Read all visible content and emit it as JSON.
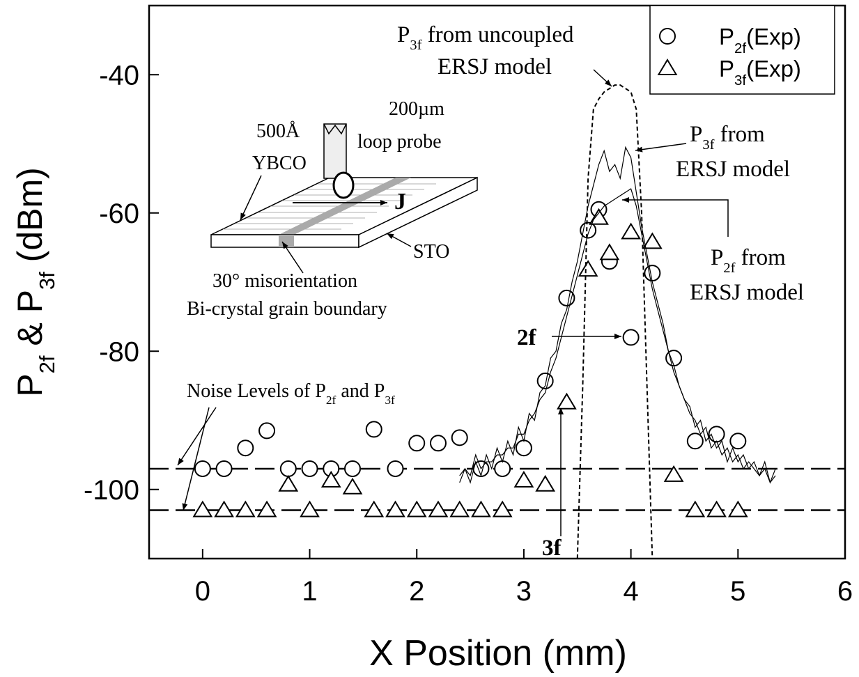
{
  "chart_data": {
    "type": "scatter",
    "x_label": "X Position (mm)",
    "y_label": [
      "P",
      "2f",
      " & P",
      "3f",
      " (dBm)"
    ],
    "xlim": [
      -0.5,
      6
    ],
    "ylim": [
      -110,
      -30
    ],
    "xticks": [
      0,
      1,
      2,
      3,
      4,
      5,
      6
    ],
    "yticks": [
      -40,
      -60,
      -80,
      -100
    ],
    "reference_lines": [
      -97,
      -103
    ],
    "series": [
      {
        "name": [
          "P",
          "2f",
          "(Exp)"
        ],
        "marker": "circle",
        "color": "#000000",
        "x": [
          0,
          0.2,
          0.4,
          0.6,
          0.8,
          1.0,
          1.2,
          1.4,
          1.6,
          1.8,
          2.0,
          2.2,
          2.4,
          2.6,
          2.8,
          3.0,
          3.2,
          3.4,
          3.6,
          3.7,
          3.8,
          4.0,
          4.2,
          4.4,
          4.6,
          4.8,
          5.0
        ],
        "values": [
          -97,
          -97,
          -94,
          -91.5,
          -97,
          -97,
          -97,
          -97,
          -91.3,
          -97,
          -93.3,
          -93.3,
          -92.5,
          -97,
          -97,
          -94,
          -84.3,
          -72.3,
          -62.5,
          -59.5,
          -67,
          -78,
          -68.7,
          -81,
          -93,
          -92,
          -93
        ]
      },
      {
        "name": [
          "P",
          "3f",
          "(Exp)"
        ],
        "marker": "triangle",
        "color": "#000000",
        "x": [
          0,
          0.2,
          0.4,
          0.6,
          0.8,
          1.0,
          1.2,
          1.4,
          1.6,
          1.8,
          2.0,
          2.2,
          2.4,
          2.6,
          2.8,
          3.0,
          3.2,
          3.4,
          3.6,
          3.7,
          3.8,
          4.0,
          4.2,
          4.4,
          4.6,
          4.8,
          5.0
        ],
        "values": [
          -103,
          -103,
          -103,
          -103,
          -99.3,
          -103,
          -98.7,
          -99.7,
          -103,
          -103,
          -103,
          -103,
          -103,
          -103,
          -103,
          -98.7,
          -99.3,
          -87.4,
          -68.2,
          -60.7,
          -65.8,
          -62.8,
          -64.2,
          -97.9,
          -103,
          -103,
          -103
        ]
      },
      {
        "marker": "line",
        "color": "#000000",
        "x": [
          2.4,
          2.45,
          2.5,
          2.55,
          2.6,
          2.65,
          2.7,
          2.75,
          2.8,
          2.85,
          2.9,
          2.95,
          3.0,
          3.05,
          3.1,
          3.15,
          3.2,
          3.25,
          3.3,
          3.35,
          3.4,
          3.45,
          3.5,
          3.55,
          3.6,
          3.65,
          3.7,
          3.75,
          3.8,
          3.85,
          3.9,
          3.95,
          4.0,
          4.05,
          4.1,
          4.15,
          4.2,
          4.25,
          4.3,
          4.35,
          4.4,
          4.45,
          4.5,
          4.55,
          4.6,
          4.65,
          4.7,
          4.75,
          4.8,
          4.85,
          4.9,
          4.95,
          5.0,
          5.05,
          5.1,
          5.15,
          5.2,
          5.25,
          5.3,
          5.35
        ],
        "values": [
          -98,
          -97,
          -99,
          -96,
          -98,
          -95,
          -97,
          -94,
          -96,
          -93,
          -95,
          -91,
          -93,
          -89,
          -90,
          -86,
          -85,
          -81,
          -80,
          -76,
          -74,
          -70,
          -67,
          -63,
          -59,
          -56,
          -53,
          -51,
          -54,
          -53,
          -55,
          -50.5,
          -52,
          -57,
          -62,
          -66,
          -70,
          -73,
          -76,
          -80,
          -82,
          -85,
          -87,
          -88,
          -91,
          -90,
          -93,
          -92,
          -94,
          -93,
          -96,
          -94,
          -96,
          -95,
          -97,
          -96,
          -98,
          -97,
          -99,
          -98
        ]
      },
      {
        "marker": "line",
        "color": "#000000",
        "x": [
          2.4,
          2.45,
          2.5,
          2.55,
          2.6,
          2.65,
          2.7,
          2.75,
          2.8,
          2.85,
          2.9,
          2.95,
          3.0,
          3.05,
          3.1,
          3.15,
          3.2,
          3.25,
          3.3,
          3.35,
          3.4,
          3.45,
          3.5,
          3.55,
          3.6,
          3.65,
          3.7,
          3.75,
          3.8,
          3.85,
          3.9,
          3.95,
          4.0,
          4.05,
          4.1,
          4.15,
          4.2,
          4.25,
          4.3,
          4.35,
          4.4,
          4.45,
          4.5,
          4.55,
          4.6,
          4.65,
          4.7,
          4.75,
          4.8,
          4.85,
          4.9,
          4.95,
          5.0,
          5.05,
          5.1,
          5.15,
          5.2,
          5.25,
          5.3,
          5.35
        ],
        "values": [
          -99,
          -97,
          -98,
          -95,
          -97,
          -96,
          -96,
          -95,
          -95,
          -94,
          -94,
          -92,
          -92,
          -90,
          -89,
          -87,
          -86,
          -83,
          -81,
          -78,
          -75,
          -72,
          -69,
          -66,
          -63,
          -61,
          -60,
          -59,
          -58.5,
          -58,
          -57.5,
          -57,
          -56.5,
          -59,
          -63,
          -67,
          -71,
          -74,
          -77,
          -80,
          -83,
          -85,
          -87,
          -89,
          -90,
          -92,
          -91,
          -94,
          -93,
          -95,
          -94,
          -96,
          -95,
          -97,
          -96,
          -97,
          -98,
          -96,
          -99,
          -97
        ]
      },
      {
        "marker": "dotted",
        "color": "#000000",
        "x": [
          3.5,
          3.55,
          3.6,
          3.65,
          3.7,
          3.75,
          3.8,
          3.85,
          3.9,
          3.95,
          4.0,
          4.05,
          4.1,
          4.15,
          4.2
        ],
        "values": [
          -110,
          -85,
          -55,
          -45,
          -43.5,
          -42.5,
          -42,
          -41.5,
          -41.5,
          -42,
          -42.5,
          -45,
          -60,
          -85,
          -110
        ]
      }
    ],
    "annotations": [
      [
        "P",
        "3f",
        " from uncoupled"
      ],
      [
        "ERSJ model"
      ],
      [
        "P",
        "3f",
        " from"
      ],
      [
        "ERSJ model"
      ],
      [
        "P",
        "2f",
        " from"
      ],
      [
        "ERSJ model"
      ],
      [
        "2f"
      ],
      [
        "3f"
      ],
      [
        "Noise Levels of P",
        "2f",
        " and P",
        "3f"
      ],
      [
        "500Å"
      ],
      [
        "YBCO"
      ],
      [
        "200µm"
      ],
      [
        "loop probe"
      ],
      [
        "J"
      ],
      [
        "STO"
      ],
      [
        "30° misorientation"
      ],
      [
        "Bi-crystal grain boundary"
      ]
    ]
  }
}
